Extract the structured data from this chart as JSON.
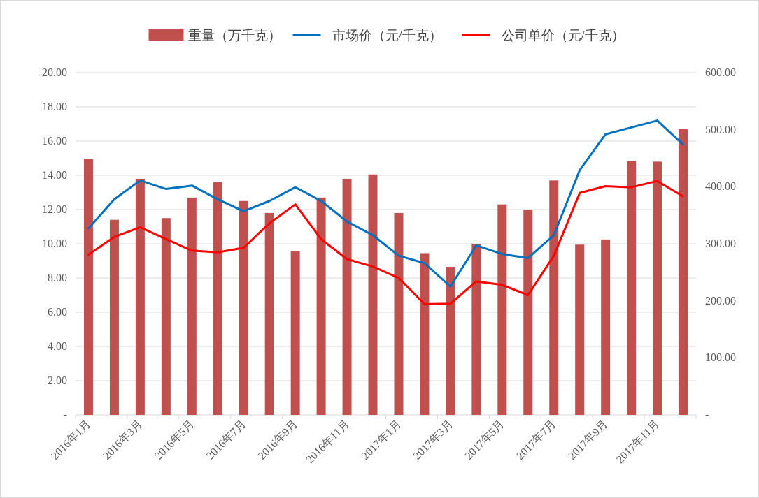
{
  "chart_data": {
    "type": "bar",
    "categories": [
      "2016年1月",
      null,
      "2016年3月",
      null,
      "2016年5月",
      null,
      "2016年7月",
      null,
      "2016年9月",
      null,
      "2016年11月",
      null,
      "2017年1月",
      null,
      "2017年3月",
      null,
      "2017年5月",
      null,
      "2017年7月",
      null,
      "2017年9月",
      null,
      "2017年11月",
      null
    ],
    "series": [
      {
        "name": "重量（万千克）",
        "color": "#c0504d",
        "values": [
          14.95,
          11.4,
          13.8,
          11.5,
          12.7,
          13.6,
          12.5,
          11.8,
          9.55,
          12.7,
          13.8,
          14.05,
          11.8,
          9.45,
          8.65,
          10.0,
          12.3,
          12.0,
          13.7,
          9.95,
          10.25,
          14.85,
          14.8,
          16.7
        ]
      },
      {
        "name": "市场价（元/千克）",
        "type": "line",
        "axis": "y2",
        "color": "#0070c0",
        "values": [
          327,
          378,
          411,
          396,
          402,
          378,
          357,
          375,
          399,
          375,
          339,
          315,
          279,
          266,
          225,
          297,
          282,
          275,
          315,
          429,
          492,
          504,
          516,
          474
        ]
      },
      {
        "name": "公司单价（元/千克）",
        "type": "line",
        "axis": "y2",
        "color": "#ff0000",
        "values": [
          281,
          312,
          329,
          308,
          288,
          285,
          293,
          336,
          369,
          308,
          273,
          260,
          240,
          194,
          195,
          234,
          228,
          210,
          279,
          389,
          401,
          399,
          410,
          383
        ]
      }
    ],
    "ylim": [
      0,
      20
    ],
    "yticks": [
      {
        "value": 0,
        "label": "-"
      },
      {
        "value": 2,
        "label": "2.00"
      },
      {
        "value": 4,
        "label": "4.00"
      },
      {
        "value": 6,
        "label": "6.00"
      },
      {
        "value": 8,
        "label": "8.00"
      },
      {
        "value": 10,
        "label": "10.00"
      },
      {
        "value": 12,
        "label": "12.00"
      },
      {
        "value": 14,
        "label": "14.00"
      },
      {
        "value": 16,
        "label": "16.00"
      },
      {
        "value": 18,
        "label": "18.00"
      },
      {
        "value": 20,
        "label": "20.00"
      }
    ],
    "y2lim": [
      0,
      600
    ],
    "y2ticks": [
      {
        "value": 0,
        "label": "-"
      },
      {
        "value": 100,
        "label": "100.00"
      },
      {
        "value": 200,
        "label": "200.00"
      },
      {
        "value": 300,
        "label": "300.00"
      },
      {
        "value": 400,
        "label": "400.00"
      },
      {
        "value": 500,
        "label": "500.00"
      },
      {
        "value": 600,
        "label": "600.00"
      }
    ],
    "grid": "y",
    "legend": "top",
    "line_style": "solid"
  }
}
